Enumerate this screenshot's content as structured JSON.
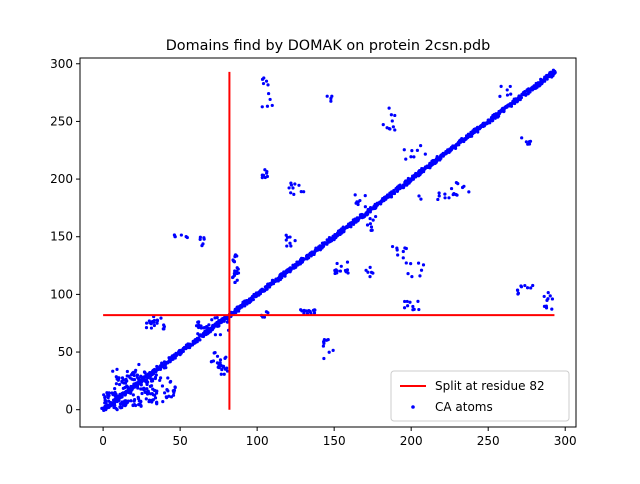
{
  "chart_data": {
    "type": "scatter",
    "title": "Domains find by DOMAK on protein 2csn.pdb",
    "xlabel": "",
    "ylabel": "",
    "xlim": [
      -15,
      307
    ],
    "ylim": [
      -15,
      305
    ],
    "xticks": [
      0,
      50,
      100,
      150,
      200,
      250,
      300
    ],
    "yticks": [
      0,
      50,
      100,
      150,
      200,
      250,
      300
    ],
    "grid": false,
    "legend_position": "lower-right",
    "series": [
      {
        "name": "Split at residue 82",
        "kind": "line",
        "color": "#ff0000",
        "segments": [
          {
            "x": [
              82,
              82
            ],
            "y": [
              0,
              293
            ]
          },
          {
            "x": [
              0,
              293
            ],
            "y": [
              82,
              82
            ]
          }
        ]
      },
      {
        "name": "CA atoms",
        "kind": "scatter",
        "color": "#0000ff",
        "diagonal": {
          "from": 0,
          "to": 293
        },
        "clusters": [
          {
            "x": [
              0,
              15
            ],
            "y": [
              0,
              15
            ],
            "n": 60
          },
          {
            "x": [
              5,
              45
            ],
            "y": [
              5,
              40
            ],
            "n": 45
          },
          {
            "x": [
              15,
              35
            ],
            "y": [
              15,
              35
            ],
            "n": 60
          },
          {
            "x": [
              13,
              25
            ],
            "y": [
              3,
              8
            ],
            "n": 20
          },
          {
            "x": [
              28,
              35
            ],
            "y": [
              5,
              15
            ],
            "n": 15
          },
          {
            "x": [
              8,
              16
            ],
            "y": [
              18,
              28
            ],
            "n": 18
          },
          {
            "x": [
              40,
              50
            ],
            "y": [
              10,
              20
            ],
            "n": 10
          },
          {
            "x": [
              28,
              40
            ],
            "y": [
              70,
              82
            ],
            "n": 20
          },
          {
            "x": [
              60,
              82
            ],
            "y": [
              65,
              80
            ],
            "n": 28
          },
          {
            "x": [
              74,
              82
            ],
            "y": [
              30,
              40
            ],
            "n": 15
          },
          {
            "x": [
              68,
              80
            ],
            "y": [
              40,
              52
            ],
            "n": 12
          },
          {
            "x": [
              83,
              88
            ],
            "y": [
              110,
              135
            ],
            "n": 22
          },
          {
            "x": [
              128,
              138
            ],
            "y": [
              83,
              87
            ],
            "n": 16
          },
          {
            "x": [
              143,
              150
            ],
            "y": [
              42,
              62
            ],
            "n": 10
          },
          {
            "x": [
              150,
              160
            ],
            "y": [
              118,
              128
            ],
            "n": 14
          },
          {
            "x": [
              102,
              110
            ],
            "y": [
              258,
              288
            ],
            "n": 10
          },
          {
            "x": [
              103,
              107
            ],
            "y": [
              200,
              210
            ],
            "n": 8
          },
          {
            "x": [
              62,
              66
            ],
            "y": [
              142,
              150
            ],
            "n": 6
          },
          {
            "x": [
              45,
              55
            ],
            "y": [
              148,
              152
            ],
            "n": 6
          },
          {
            "x": [
              120,
              132
            ],
            "y": [
              185,
              197
            ],
            "n": 10
          },
          {
            "x": [
              118,
              125
            ],
            "y": [
              140,
              152
            ],
            "n": 8
          },
          {
            "x": [
              163,
              175
            ],
            "y": [
              176,
              187
            ],
            "n": 8
          },
          {
            "x": [
              170,
              180
            ],
            "y": [
              155,
              168
            ],
            "n": 8
          },
          {
            "x": [
              185,
              200
            ],
            "y": [
              128,
              142
            ],
            "n": 8
          },
          {
            "x": [
              195,
              210
            ],
            "y": [
              215,
              232
            ],
            "n": 8
          },
          {
            "x": [
              195,
              205
            ],
            "y": [
              85,
              95
            ],
            "n": 10
          },
          {
            "x": [
              195,
              210
            ],
            "y": [
              115,
              128
            ],
            "n": 8
          },
          {
            "x": [
              170,
              180
            ],
            "y": [
              115,
              125
            ],
            "n": 6
          },
          {
            "x": [
              205,
              230
            ],
            "y": [
              180,
              188
            ],
            "n": 10
          },
          {
            "x": [
              225,
              240
            ],
            "y": [
              185,
              198
            ],
            "n": 8
          },
          {
            "x": [
              255,
              265
            ],
            "y": [
              270,
              282
            ],
            "n": 6
          },
          {
            "x": [
              270,
              280
            ],
            "y": [
              230,
              238
            ],
            "n": 6
          },
          {
            "x": [
              268,
              280
            ],
            "y": [
              100,
              108
            ],
            "n": 10
          },
          {
            "x": [
              285,
              292
            ],
            "y": [
              85,
              102
            ],
            "n": 10
          },
          {
            "x": [
              180,
              190
            ],
            "y": [
              240,
              262
            ],
            "n": 10
          },
          {
            "x": [
              145,
              150
            ],
            "y": [
              267,
              272
            ],
            "n": 4
          },
          {
            "x": [
              102,
              107
            ],
            "y": [
              80,
              85
            ],
            "n": 5
          }
        ]
      }
    ]
  }
}
